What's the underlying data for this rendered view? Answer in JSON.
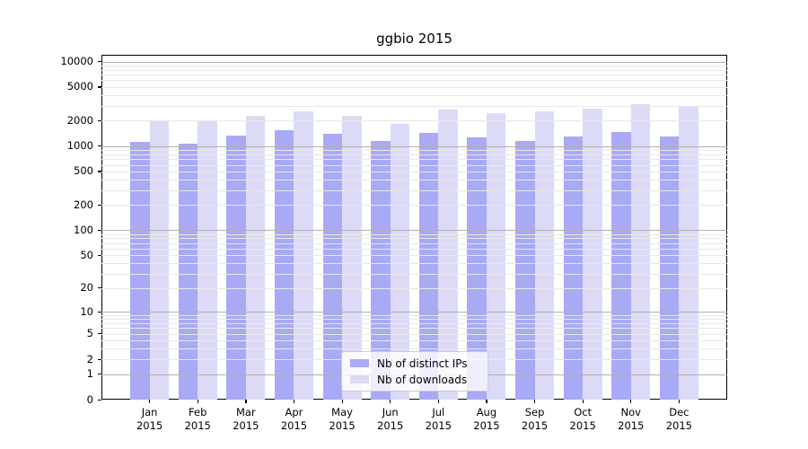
{
  "title": "ggbio 2015",
  "chart_data": {
    "type": "bar",
    "title": "ggbio 2015",
    "categories": [
      "Jan 2015",
      "Feb 2015",
      "Mar 2015",
      "Apr 2015",
      "May 2015",
      "Jun 2015",
      "Jul 2015",
      "Aug 2015",
      "Sep 2015",
      "Oct 2015",
      "Nov 2015",
      "Dec 2015"
    ],
    "series": [
      {
        "name": "Nb of distinct IPs",
        "color": "#a9a9f5",
        "values": [
          1120,
          1060,
          1340,
          1550,
          1390,
          1140,
          1440,
          1270,
          1140,
          1310,
          1460,
          1290
        ]
      },
      {
        "name": "Nb of downloads",
        "color": "#dbdbf8",
        "values": [
          2030,
          1950,
          2260,
          2580,
          2300,
          1820,
          2730,
          2470,
          2550,
          2780,
          3160,
          2890
        ]
      }
    ],
    "yscale": "log1p",
    "ylim": [
      0,
      12000
    ],
    "ytick_labels": [
      "10000",
      "5000",
      "2000",
      "1000",
      "500",
      "200",
      "100",
      "50",
      "20",
      "10",
      "5",
      "2",
      "1",
      "0"
    ],
    "ytick_values": [
      10000,
      5000,
      2000,
      1000,
      500,
      200,
      100,
      50,
      20,
      10,
      5,
      2,
      1,
      0
    ],
    "major_grid_values": [
      1,
      10,
      100,
      1000,
      10000
    ],
    "minor_grid_values": [
      2,
      3,
      4,
      5,
      6,
      7,
      8,
      9,
      20,
      30,
      40,
      50,
      60,
      70,
      80,
      90,
      200,
      300,
      400,
      500,
      600,
      700,
      800,
      900,
      2000,
      3000,
      4000,
      5000,
      6000,
      7000,
      8000,
      9000
    ],
    "grid": true,
    "legend_position": "lower-center"
  },
  "legend": {
    "items": [
      {
        "label": "Nb of distinct IPs",
        "color": "#a9a9f5"
      },
      {
        "label": "Nb of downloads",
        "color": "#dbdbf8"
      }
    ]
  },
  "colors": {
    "major_grid": "#b0b0b0",
    "minor_grid": "#e8e8e8",
    "spine": "#000000",
    "background": "#ffffff"
  }
}
